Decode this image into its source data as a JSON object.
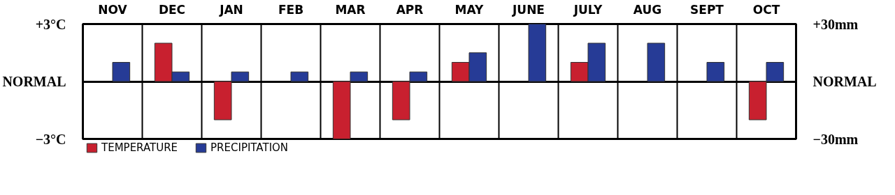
{
  "chart_data": {
    "type": "bar",
    "categories": [
      "NOV",
      "DEC",
      "JAN",
      "FEB",
      "MAR",
      "APR",
      "MAY",
      "JUNE",
      "JULY",
      "AUG",
      "SEPT",
      "OCT"
    ],
    "series": [
      {
        "name": "TEMPERATURE",
        "color": "#c8202f",
        "values": [
          null,
          2,
          -2,
          null,
          -3,
          -2,
          1,
          null,
          1,
          null,
          null,
          -2
        ]
      },
      {
        "name": "PRECIPITATION",
        "color": "#263b96",
        "axis": "y2",
        "values": [
          10,
          5,
          5,
          5,
          5,
          5,
          15,
          30,
          20,
          20,
          10,
          10
        ]
      }
    ],
    "ylim": [
      -3,
      3
    ],
    "yticks": [
      {
        "value": 3,
        "label": "+3°C"
      },
      {
        "value": 0,
        "label": "NORMAL"
      },
      {
        "value": -3,
        "label": "−3°C"
      }
    ],
    "y2lim": [
      -30,
      30
    ],
    "y2ticks": [
      {
        "value": 30,
        "label": "+30mm"
      },
      {
        "value": 0,
        "label": "NORMAL"
      },
      {
        "value": -30,
        "label": "−30mm"
      }
    ],
    "grid": true,
    "legend": "bottom left"
  }
}
